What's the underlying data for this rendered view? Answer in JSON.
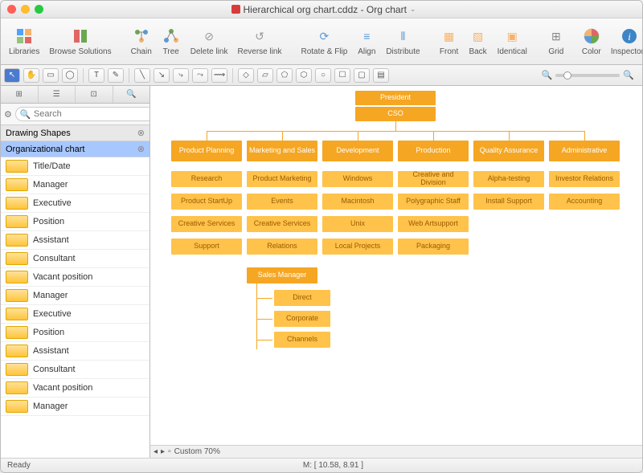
{
  "window": {
    "title": "Hierarchical org chart.cddz - Org chart",
    "traffic_colors": [
      "#ff5f57",
      "#febc2e",
      "#28c840"
    ]
  },
  "toolbar": {
    "items": [
      {
        "label": "Libraries",
        "color": "#4da3ff"
      },
      {
        "label": "Browse Solutions",
        "color": "#e06666"
      },
      {
        "label": "Chain",
        "color": "#6aa84f"
      },
      {
        "label": "Tree",
        "color": "#6aa84f"
      },
      {
        "label": "Delete link",
        "color": "#999"
      },
      {
        "label": "Reverse link",
        "color": "#999"
      },
      {
        "label": "Rotate & Flip",
        "color": "#5b9bd5"
      },
      {
        "label": "Align",
        "color": "#5b9bd5"
      },
      {
        "label": "Distribute",
        "color": "#5b9bd5"
      },
      {
        "label": "Front",
        "color": "#f6b26b"
      },
      {
        "label": "Back",
        "color": "#f6b26b"
      },
      {
        "label": "Identical",
        "color": "#f6b26b"
      },
      {
        "label": "Grid",
        "color": "#888"
      },
      {
        "label": "Color",
        "color": "#e06666"
      },
      {
        "label": "Inspectors",
        "color": "#3d85c6"
      }
    ]
  },
  "sidebar": {
    "search_placeholder": "Search",
    "categories": [
      {
        "label": "Drawing Shapes",
        "selected": false
      },
      {
        "label": "Organizational chart",
        "selected": true
      }
    ],
    "shapes": [
      "Title/Date",
      "Manager",
      "Executive",
      "Position",
      "Assistant",
      "Consultant",
      "Vacant position",
      "Manager",
      "Executive",
      "Position",
      "Assistant",
      "Consultant",
      "Vacant position",
      "Manager"
    ]
  },
  "chart": {
    "background": "#ffffff",
    "node_color": "#f5a623",
    "node_light_color": "#ffc24a",
    "text_color": "#ffffff",
    "connector_color": "#f5a623",
    "president": {
      "title": "President",
      "subtitle": "CSO"
    },
    "row2": [
      "Product Planning",
      "Marketing and Sales",
      "Development",
      "Production",
      "Quality Assurance",
      "Administrative"
    ],
    "cols": [
      [
        "Research",
        "Product StartUp",
        "Creative Services",
        "Support"
      ],
      [
        "Product Marketing",
        "Events",
        "Creative Services",
        "Relations"
      ],
      [
        "Windows",
        "Macintosh",
        "Unix",
        "Local Projects"
      ],
      [
        "Creative and Division",
        "Polygraphic Staff",
        "Web Artsupport",
        "Packaging"
      ],
      [
        "Alpha-testing",
        "Install Support"
      ],
      [
        "Investor Relations",
        "Accounting"
      ]
    ],
    "sales_manager": {
      "label": "Sales Manager",
      "children": [
        "Direct",
        "Corporate",
        "Channels"
      ]
    }
  },
  "zoom": {
    "label": "Custom 70%"
  },
  "status": {
    "ready": "Ready",
    "coords": "M: [ 10.58, 8.91 ]"
  }
}
